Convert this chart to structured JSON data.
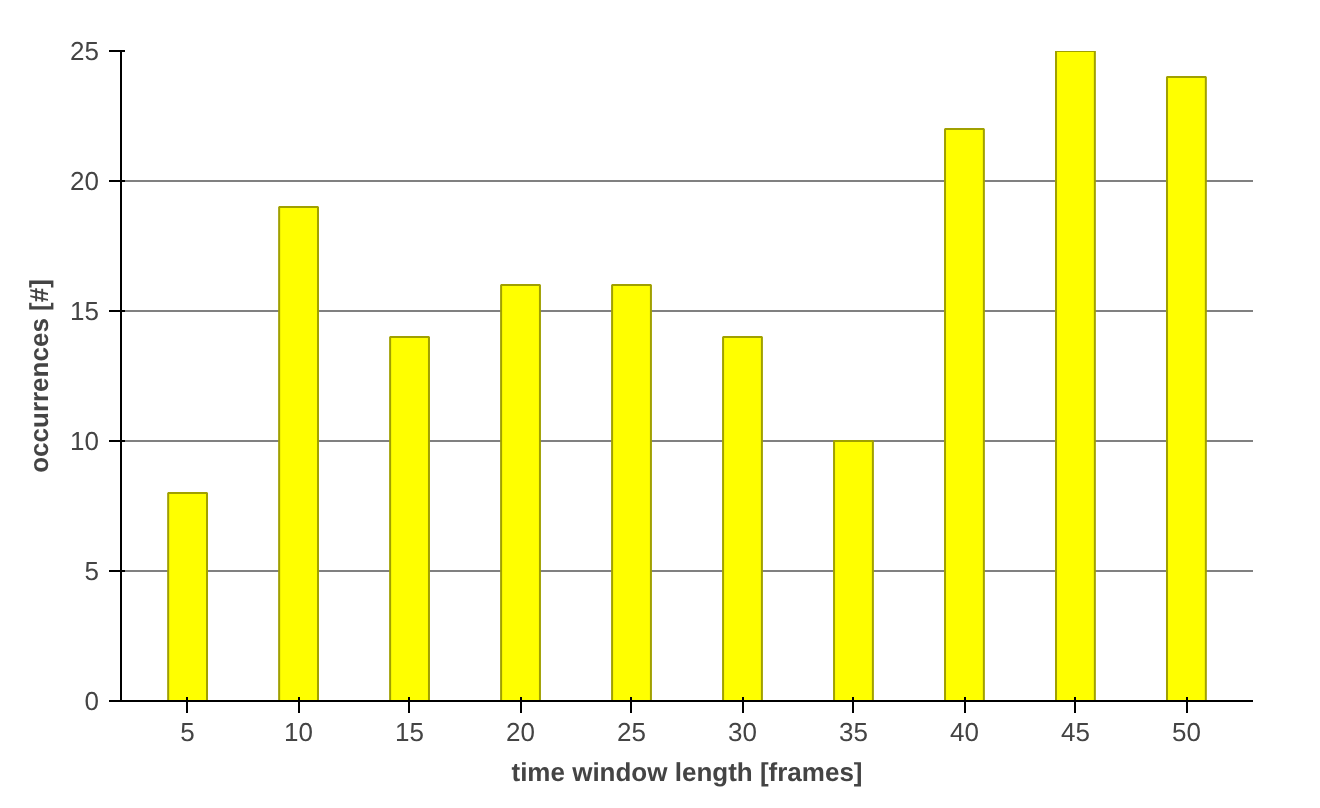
{
  "chart_data": {
    "type": "bar",
    "xlabel": "time window length [frames]",
    "ylabel": "occurrences [#]",
    "categories": [
      "5",
      "10",
      "15",
      "20",
      "25",
      "30",
      "35",
      "40",
      "45",
      "50"
    ],
    "values": [
      8,
      19,
      14,
      16,
      16,
      14,
      10,
      22,
      25,
      24
    ],
    "color": "#ffff00",
    "ylim": [
      0,
      25
    ],
    "yticks": [
      0,
      5,
      10,
      15,
      20,
      25
    ],
    "grid": "y"
  }
}
